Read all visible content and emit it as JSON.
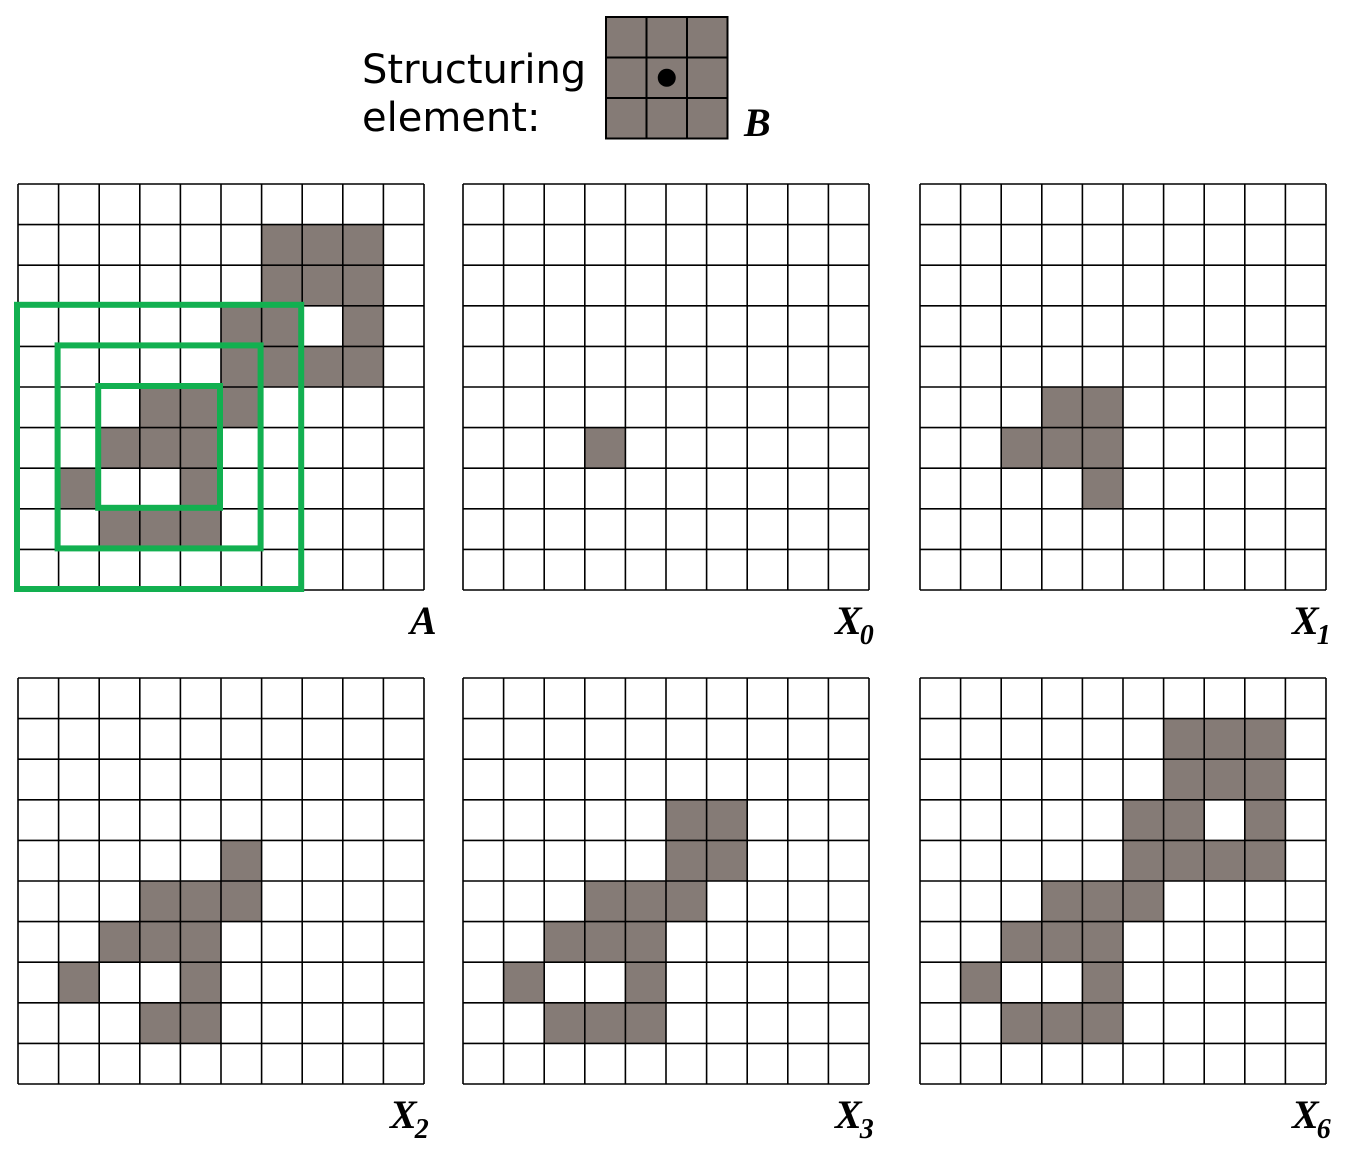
{
  "structuring_element": {
    "caption_line1": "Structuring",
    "caption_line2": "element:",
    "label": "B",
    "size": 3,
    "origin": [
      1,
      1
    ]
  },
  "colors": {
    "fill": "#857b76",
    "grid_line": "#000000",
    "highlight": "#12b050",
    "background": "#ffffff"
  },
  "grid_size": 10,
  "panels": [
    {
      "name": "A",
      "label": "A",
      "sub": "",
      "cells": [
        [
          1,
          6
        ],
        [
          1,
          7
        ],
        [
          1,
          8
        ],
        [
          2,
          6
        ],
        [
          2,
          7
        ],
        [
          2,
          8
        ],
        [
          3,
          5
        ],
        [
          3,
          6
        ],
        [
          3,
          8
        ],
        [
          4,
          5
        ],
        [
          4,
          6
        ],
        [
          4,
          7
        ],
        [
          4,
          8
        ],
        [
          5,
          3
        ],
        [
          5,
          4
        ],
        [
          5,
          5
        ],
        [
          6,
          2
        ],
        [
          6,
          3
        ],
        [
          6,
          4
        ],
        [
          7,
          1
        ],
        [
          7,
          4
        ],
        [
          8,
          2
        ],
        [
          8,
          3
        ],
        [
          8,
          4
        ]
      ]
    },
    {
      "name": "X0",
      "label": "X",
      "sub": "0",
      "cells": [
        [
          6,
          3
        ]
      ]
    },
    {
      "name": "X1",
      "label": "X",
      "sub": "1",
      "cells": [
        [
          5,
          3
        ],
        [
          5,
          4
        ],
        [
          6,
          2
        ],
        [
          6,
          3
        ],
        [
          6,
          4
        ],
        [
          7,
          4
        ]
      ]
    },
    {
      "name": "X2",
      "label": "X",
      "sub": "2",
      "cells": [
        [
          4,
          5
        ],
        [
          5,
          3
        ],
        [
          5,
          4
        ],
        [
          5,
          5
        ],
        [
          6,
          2
        ],
        [
          6,
          3
        ],
        [
          6,
          4
        ],
        [
          7,
          1
        ],
        [
          7,
          4
        ],
        [
          8,
          3
        ],
        [
          8,
          4
        ]
      ]
    },
    {
      "name": "X3",
      "label": "X",
      "sub": "3",
      "cells": [
        [
          3,
          5
        ],
        [
          3,
          6
        ],
        [
          4,
          5
        ],
        [
          4,
          6
        ],
        [
          5,
          3
        ],
        [
          5,
          4
        ],
        [
          5,
          5
        ],
        [
          6,
          2
        ],
        [
          6,
          3
        ],
        [
          6,
          4
        ],
        [
          7,
          1
        ],
        [
          7,
          4
        ],
        [
          8,
          2
        ],
        [
          8,
          3
        ],
        [
          8,
          4
        ]
      ]
    },
    {
      "name": "X6",
      "label": "X",
      "sub": "6",
      "cells": [
        [
          1,
          6
        ],
        [
          1,
          7
        ],
        [
          1,
          8
        ],
        [
          2,
          6
        ],
        [
          2,
          7
        ],
        [
          2,
          8
        ],
        [
          3,
          5
        ],
        [
          3,
          6
        ],
        [
          3,
          8
        ],
        [
          4,
          5
        ],
        [
          4,
          6
        ],
        [
          4,
          7
        ],
        [
          4,
          8
        ],
        [
          5,
          3
        ],
        [
          5,
          4
        ],
        [
          5,
          5
        ],
        [
          6,
          2
        ],
        [
          6,
          3
        ],
        [
          6,
          4
        ],
        [
          7,
          1
        ],
        [
          7,
          4
        ],
        [
          8,
          2
        ],
        [
          8,
          3
        ],
        [
          8,
          4
        ]
      ]
    }
  ],
  "highlights": {
    "panel": "A",
    "boxes": [
      {
        "row0": 3,
        "col0": 0,
        "size": 7
      },
      {
        "row0": 4,
        "col0": 1,
        "size": 5
      },
      {
        "row0": 5,
        "col0": 2,
        "size": 3
      }
    ]
  }
}
